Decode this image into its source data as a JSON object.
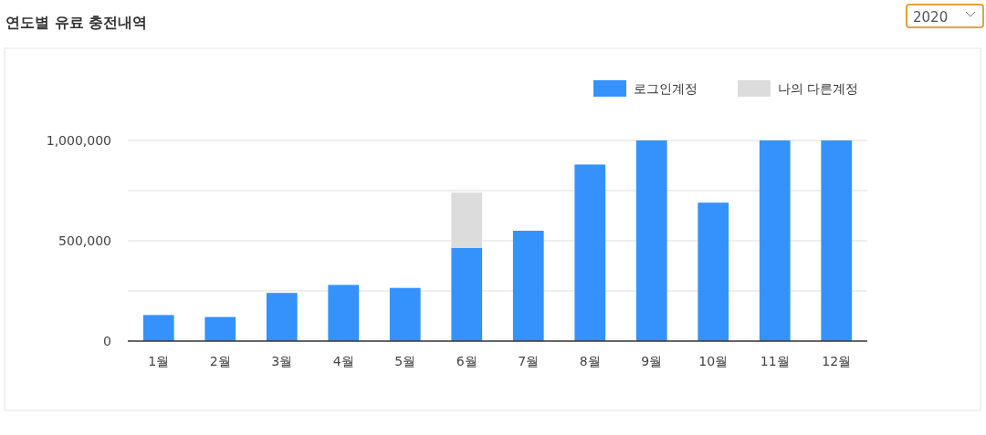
{
  "chart_data": {
    "type": "bar",
    "title": "연도별 유료 충전내역",
    "annotations": [
      "2020"
    ],
    "categories": [
      "1월",
      "2월",
      "3월",
      "4월",
      "5월",
      "6월",
      "7월",
      "8월",
      "9월",
      "10월",
      "11월",
      "12월"
    ],
    "stacked": true,
    "series": [
      {
        "name": "로그인계정",
        "color": "#3592fd",
        "values": [
          130000,
          120000,
          240000,
          280000,
          265000,
          465000,
          550000,
          880000,
          1000000,
          690000,
          1000000,
          1000000
        ]
      },
      {
        "name": "나의 다른계정",
        "color": "#dcdcdc",
        "values": [
          0,
          0,
          0,
          0,
          0,
          275000,
          0,
          0,
          0,
          0,
          0,
          0
        ]
      }
    ],
    "ylim": [
      0,
      1000000
    ],
    "yticks": [
      0,
      {
        "value": 250000,
        "label": null
      },
      {
        "value": 500000,
        "label": "500,000"
      },
      {
        "value": 750000,
        "label": null
      },
      {
        "value": 1000000,
        "label": "1,000,000"
      }
    ],
    "grid": "y",
    "legend": "top right"
  }
}
